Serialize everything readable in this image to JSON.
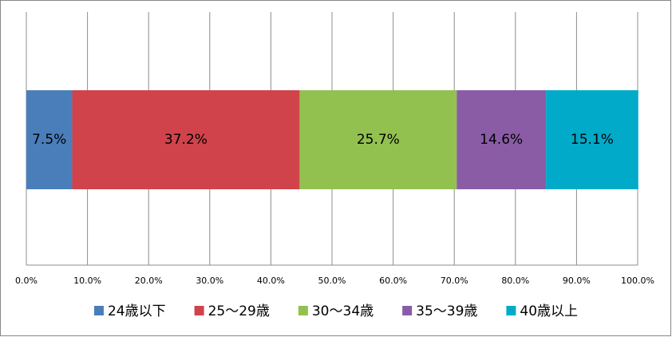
{
  "chart_data": {
    "type": "stacked_hbar",
    "series": [
      {
        "name": "24歳以下",
        "color": "#4a7ebb",
        "values": [
          7.5
        ],
        "value_labels": [
          "7.5%"
        ]
      },
      {
        "name": "25～29歳",
        "color": "#d0434b",
        "values": [
          37.2
        ],
        "value_labels": [
          "37.2%"
        ]
      },
      {
        "name": "30～34歳",
        "color": "#92c14f",
        "values": [
          25.7
        ],
        "value_labels": [
          "25.7%"
        ]
      },
      {
        "name": "35～39歳",
        "color": "#8a5ca6",
        "values": [
          14.6
        ],
        "value_labels": [
          "14.6%"
        ]
      },
      {
        "name": "40歳以上",
        "color": "#00aac8",
        "values": [
          15.1
        ],
        "value_labels": [
          "15.1%"
        ]
      }
    ],
    "xlim": [
      0,
      100
    ],
    "xticks": [
      {
        "value": 0,
        "label": "0.0%"
      },
      {
        "value": 10,
        "label": "10.0%"
      },
      {
        "value": 20,
        "label": "20.0%"
      },
      {
        "value": 30,
        "label": "30.0%"
      },
      {
        "value": 40,
        "label": "40.0%"
      },
      {
        "value": 50,
        "label": "50.0%"
      },
      {
        "value": 60,
        "label": "60.0%"
      },
      {
        "value": 70,
        "label": "70.0%"
      },
      {
        "value": 80,
        "label": "80.0%"
      },
      {
        "value": 90,
        "label": "90.0%"
      },
      {
        "value": 100,
        "label": "100.0%"
      }
    ],
    "grid": true,
    "legend": "bottom"
  }
}
